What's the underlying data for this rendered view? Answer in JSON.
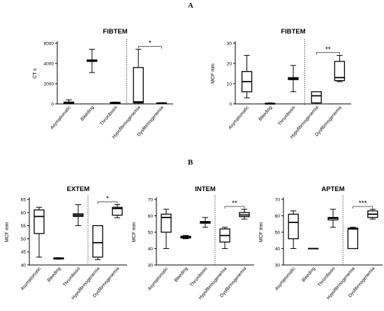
{
  "panels": [
    {
      "letter": "A"
    },
    {
      "letter": "B"
    }
  ],
  "categories": [
    "Asymptomatic",
    "Bleeding",
    "Thrombosis",
    "Hypofibrinogenemia",
    "Dysfibrinogenemia"
  ],
  "chart_data": [
    {
      "type": "box",
      "panel": "A",
      "title": "FIBTEM",
      "ylabel": "CT s",
      "ylim": [
        0,
        6000
      ],
      "yticks": [
        0,
        2000,
        4000,
        6000
      ],
      "significance": "*",
      "series": [
        {
          "category": "Asymptomatic",
          "min": 0,
          "q1": 60,
          "median": 110,
          "q3": 180,
          "max": 400
        },
        {
          "category": "Bleeding",
          "min": 3100,
          "q1": 4200,
          "median": 4300,
          "q3": 4350,
          "max": 5400
        },
        {
          "category": "Thrombosis",
          "min": 60,
          "q1": 90,
          "median": 110,
          "q3": 150,
          "max": 180
        },
        {
          "category": "Hypofibrinogenemia",
          "min": 0,
          "q1": 100,
          "median": 200,
          "q3": 3600,
          "max": 5400
        },
        {
          "category": "Dysfibrinogenemia",
          "min": 20,
          "q1": 40,
          "median": 80,
          "q3": 100,
          "max": 120
        }
      ]
    },
    {
      "type": "box",
      "panel": "A",
      "title": "FIBTEM",
      "ylabel": "MCF mm",
      "ylim": [
        0,
        30
      ],
      "yticks": [
        0,
        10,
        20,
        30
      ],
      "significance": "**",
      "series": [
        {
          "category": "Asymptomatic",
          "min": 3,
          "q1": 6,
          "median": 11,
          "q3": 16,
          "max": 24
        },
        {
          "category": "Bleeding",
          "min": 0,
          "q1": 0,
          "median": 0,
          "q3": 0.3,
          "max": 0.5
        },
        {
          "category": "Thrombosis",
          "min": 6,
          "q1": 12,
          "median": 12.5,
          "q3": 13,
          "max": 19
        },
        {
          "category": "Hypofibrinogenemia",
          "min": 0,
          "q1": 0.5,
          "median": 4,
          "q3": 6,
          "max": 6
        },
        {
          "category": "Dysfibrinogenemia",
          "min": 11,
          "q1": 11.5,
          "median": 13,
          "q3": 21,
          "max": 24
        }
      ]
    },
    {
      "type": "box",
      "panel": "B",
      "title": "EXTEM",
      "ylabel": "MCF mm",
      "ylim": [
        40,
        65
      ],
      "yticks": [
        40,
        45,
        50,
        55,
        60,
        65
      ],
      "significance": "*",
      "series": [
        {
          "category": "Asymptomatic",
          "min": 43,
          "q1": 52,
          "median": 58.5,
          "q3": 61,
          "max": 62
        },
        {
          "category": "Bleeding",
          "min": 42.2,
          "q1": 42.3,
          "median": 42.5,
          "q3": 42.7,
          "max": 42.8
        },
        {
          "category": "Thrombosis",
          "min": 55,
          "q1": 58.5,
          "median": 59,
          "q3": 59.5,
          "max": 63
        },
        {
          "category": "Hypofibrinogenemia",
          "min": 42,
          "q1": 43,
          "median": 48.5,
          "q3": 55,
          "max": 55
        },
        {
          "category": "Dysfibrinogenemia",
          "min": 58,
          "q1": 59,
          "median": 61.5,
          "q3": 62,
          "max": 63
        }
      ]
    },
    {
      "type": "box",
      "panel": "B",
      "title": "INTEM",
      "ylabel": "MCF mm",
      "ylim": [
        30,
        70
      ],
      "yticks": [
        30,
        40,
        50,
        60,
        70
      ],
      "significance": "**",
      "series": [
        {
          "category": "Asymptomatic",
          "min": 40,
          "q1": 50,
          "median": 59,
          "q3": 61,
          "max": 64
        },
        {
          "category": "Bleeding",
          "min": 46,
          "q1": 46.5,
          "median": 47,
          "q3": 47.5,
          "max": 48
        },
        {
          "category": "Thrombosis",
          "min": 53,
          "q1": 55.5,
          "median": 56,
          "q3": 56.5,
          "max": 59
        },
        {
          "category": "Hypofibrinogenemia",
          "min": 40,
          "q1": 44,
          "median": 48,
          "q3": 52,
          "max": 53
        },
        {
          "category": "Dysfibrinogenemia",
          "min": 58,
          "q1": 59.5,
          "median": 60.5,
          "q3": 62,
          "max": 64
        }
      ]
    },
    {
      "type": "box",
      "panel": "B",
      "title": "APTEM",
      "ylabel": "MCF mm",
      "ylim": [
        30,
        70
      ],
      "yticks": [
        30,
        40,
        50,
        60,
        70
      ],
      "significance": "***",
      "series": [
        {
          "category": "Asymptomatic",
          "min": 40,
          "q1": 46,
          "median": 56,
          "q3": 61,
          "max": 63
        },
        {
          "category": "Bleeding",
          "min": 39.8,
          "q1": 39.9,
          "median": 40,
          "q3": 40.1,
          "max": 40.2
        },
        {
          "category": "Thrombosis",
          "min": 53,
          "q1": 57.5,
          "median": 58.5,
          "q3": 59,
          "max": 64
        },
        {
          "category": "Hypofibrinogenemia",
          "min": 40,
          "q1": 40,
          "median": 52,
          "q3": 52.5,
          "max": 53
        },
        {
          "category": "Dysfibrinogenemia",
          "min": 58,
          "q1": 59,
          "median": 61,
          "q3": 63,
          "max": 64
        }
      ]
    }
  ]
}
